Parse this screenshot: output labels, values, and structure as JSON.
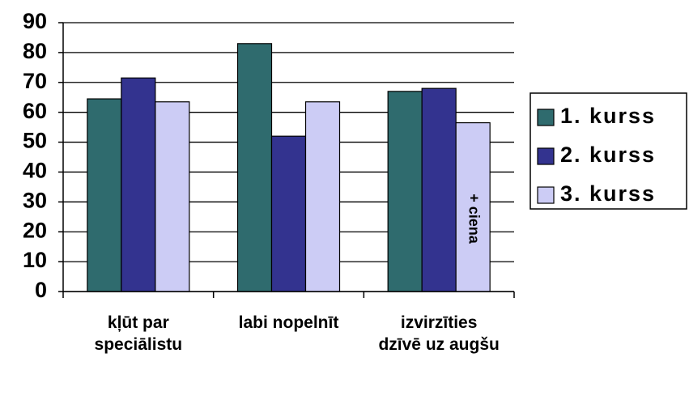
{
  "chart_data": {
    "type": "bar",
    "categories": [
      "kļūt par speciālistu",
      "labi nopelnīt",
      "izvirzīties dzīvē uz augšu"
    ],
    "series": [
      {
        "name": "1. kurss",
        "color": "#2f6b6e",
        "values": [
          64.5,
          83,
          67
        ]
      },
      {
        "name": "2. kurss",
        "color": "#33338f",
        "values": [
          71.5,
          52,
          68
        ]
      },
      {
        "name": "3. kurss",
        "color": "#ccccf5",
        "values": [
          63.5,
          63.5,
          56.5
        ]
      }
    ],
    "annotation": "+ ciena",
    "ylim": [
      0,
      90
    ],
    "yticks": [
      0,
      10,
      20,
      30,
      40,
      50,
      60,
      70,
      80,
      90
    ],
    "grid": true,
    "legend": "right"
  }
}
